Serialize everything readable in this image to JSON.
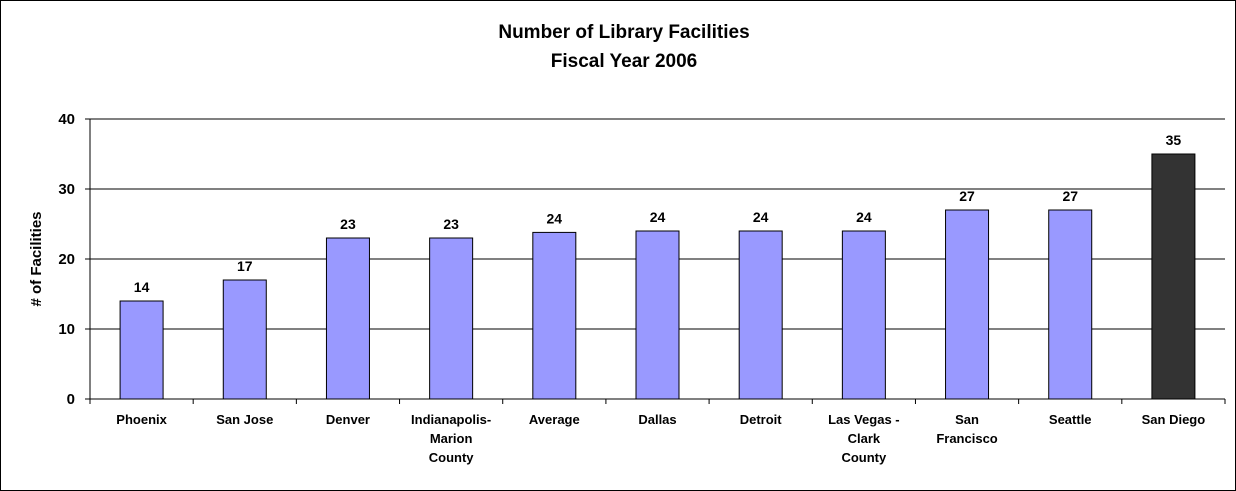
{
  "chart_data": {
    "type": "bar",
    "title_lines": [
      "Number of Library Facilities",
      "Fiscal Year 2006"
    ],
    "xlabel": "",
    "ylabel": "# of Facilities",
    "ylim": [
      0,
      40
    ],
    "yticks": [
      0,
      10,
      20,
      30,
      40
    ],
    "grid": true,
    "legend": "none",
    "categories": [
      [
        "Phoenix"
      ],
      [
        "San Jose"
      ],
      [
        "Denver"
      ],
      [
        "Indianapolis-",
        "Marion",
        "County"
      ],
      [
        "Average"
      ],
      [
        "Dallas"
      ],
      [
        "Detroit"
      ],
      [
        "Las Vegas -",
        "Clark",
        "County"
      ],
      [
        "San",
        "Francisco"
      ],
      [
        "Seattle"
      ],
      [
        "San Diego"
      ]
    ],
    "values": [
      14,
      17,
      23,
      23,
      23.8,
      24,
      24,
      24,
      27,
      27,
      35
    ],
    "data_labels": [
      "14",
      "17",
      "23",
      "23",
      "24",
      "24",
      "24",
      "24",
      "27",
      "27",
      "35"
    ],
    "highlight_category": "San Diego",
    "colors": {
      "bar": "#9999ff",
      "highlight_bar": "#333333",
      "bar_outline": "#000000",
      "gridline": "#000000",
      "frame": "#000000"
    }
  }
}
